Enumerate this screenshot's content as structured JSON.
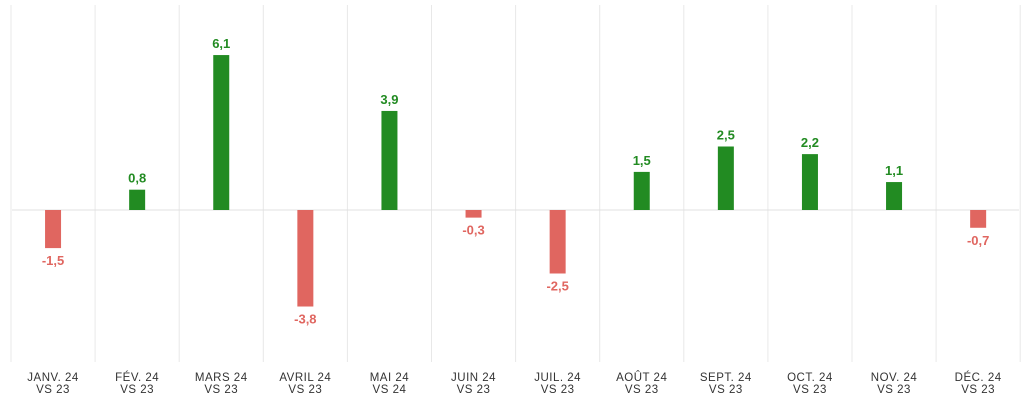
{
  "chart_data": {
    "type": "bar",
    "categories": [
      [
        "JANV. 24",
        "VS 23"
      ],
      [
        "FÉV. 24",
        "VS 23"
      ],
      [
        "MARS 24",
        "VS 23"
      ],
      [
        "AVRIL 24",
        "VS 23"
      ],
      [
        "MAI 24",
        "VS 24"
      ],
      [
        "JUIN 24",
        "VS 23"
      ],
      [
        "JUIL. 24",
        "VS 23"
      ],
      [
        "AOÛT 24",
        "VS 23"
      ],
      [
        "SEPT. 24",
        "VS 23"
      ],
      [
        "OCT. 24",
        "VS 23"
      ],
      [
        "NOV. 24",
        "VS 23"
      ],
      [
        "DÉC. 24",
        "VS 23"
      ]
    ],
    "values": [
      -1.5,
      0.8,
      6.1,
      -3.8,
      3.9,
      -0.3,
      -2.5,
      1.5,
      2.5,
      2.2,
      1.1,
      -0.7
    ],
    "value_labels": [
      "-1,5",
      "0,8",
      "6,1",
      "-3,8",
      "3,9",
      "-0,3",
      "-2,5",
      "1,5",
      "2,5",
      "2,2",
      "1,1",
      "-0,7"
    ],
    "title": "",
    "xlabel": "",
    "ylabel": "",
    "ylim": [
      -6,
      8
    ],
    "grid": "vertical",
    "colors": {
      "positive": "#228b22",
      "negative": "#e06660",
      "grid": "#e8e8e8",
      "zero_line": "#e0e0e0"
    }
  }
}
